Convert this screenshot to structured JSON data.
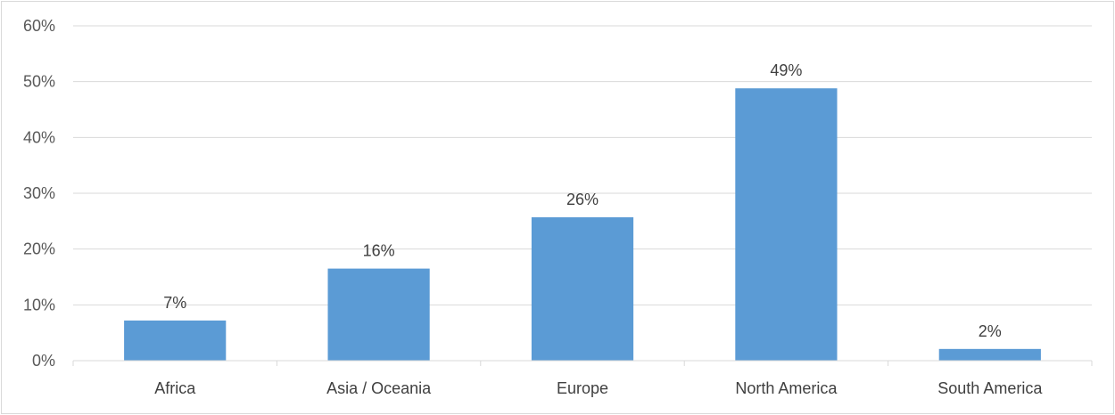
{
  "chart_data": {
    "type": "bar",
    "categories": [
      "Africa",
      "Asia / Oceania",
      "Europe",
      "North America",
      "South America"
    ],
    "values": [
      7.2,
      16.5,
      25.7,
      48.8,
      2.1
    ],
    "data_labels": [
      "7%",
      "16%",
      "26%",
      "49%",
      "2%"
    ],
    "y_ticks": [
      "0%",
      "10%",
      "20%",
      "30%",
      "40%",
      "50%",
      "60%"
    ],
    "ylim": [
      0,
      60
    ],
    "grid": true,
    "legend": "none",
    "bar_color": "#5b9bd5",
    "title": "",
    "xlabel": "",
    "ylabel": ""
  }
}
